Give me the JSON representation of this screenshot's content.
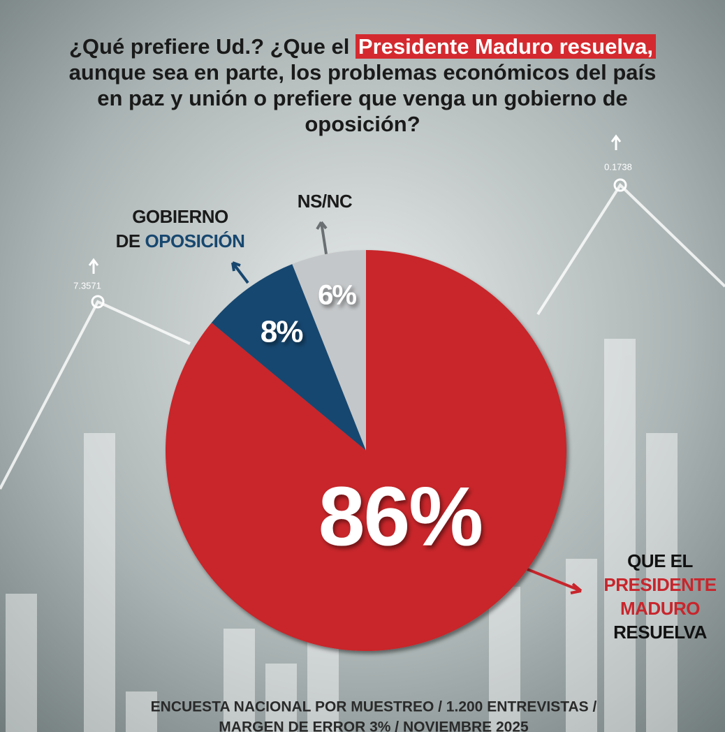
{
  "chart_data": {
    "type": "pie",
    "title_lines": [
      [
        {
          "text": "¿Qué prefiere Ud.? ¿Que el "
        },
        {
          "text": "Presidente Maduro resuelva,",
          "highlight": true
        }
      ],
      [
        {
          "text": "aunque sea en parte, los problemas económicos del país"
        }
      ],
      [
        {
          "text": "en paz y unión o prefiere que venga un gobierno de"
        }
      ],
      [
        {
          "text": "oposición?"
        }
      ]
    ],
    "category_lines": [
      [
        [
          {
            "text": "QUE EL",
            "color": "#111111"
          }
        ],
        [
          {
            "text": "PRESIDENTE",
            "color": "#c8252c"
          }
        ],
        [
          {
            "text": "MADURO",
            "color": "#c8252c"
          }
        ],
        [
          {
            "text": "RESUELVA",
            "color": "#111111"
          }
        ]
      ],
      [
        [
          {
            "text": "GOBIERNO",
            "color": "#1a1a1a"
          }
        ],
        [
          {
            "text": "DE ",
            "color": "#1a1a1a"
          },
          {
            "text": "OPOSICIÓN",
            "color": "#17476f"
          }
        ]
      ],
      [
        [
          {
            "text": "NS/NC",
            "color": "#1a1a1a"
          }
        ]
      ]
    ],
    "values": [
      86,
      8,
      6
    ],
    "value_labels": [
      "86%",
      "8%",
      "6%"
    ],
    "colors": [
      "#c8252c",
      "#17476f",
      "#c4c7c9"
    ],
    "background_labels": [
      "7.3571",
      "0.1738"
    ],
    "footer_lines": [
      "ENCUESTA NACIONAL POR MUESTREO / 1.200 ENTREVISTAS /",
      "MARGEN DE ERROR 3% / NOVIEMBRE 2025"
    ]
  }
}
